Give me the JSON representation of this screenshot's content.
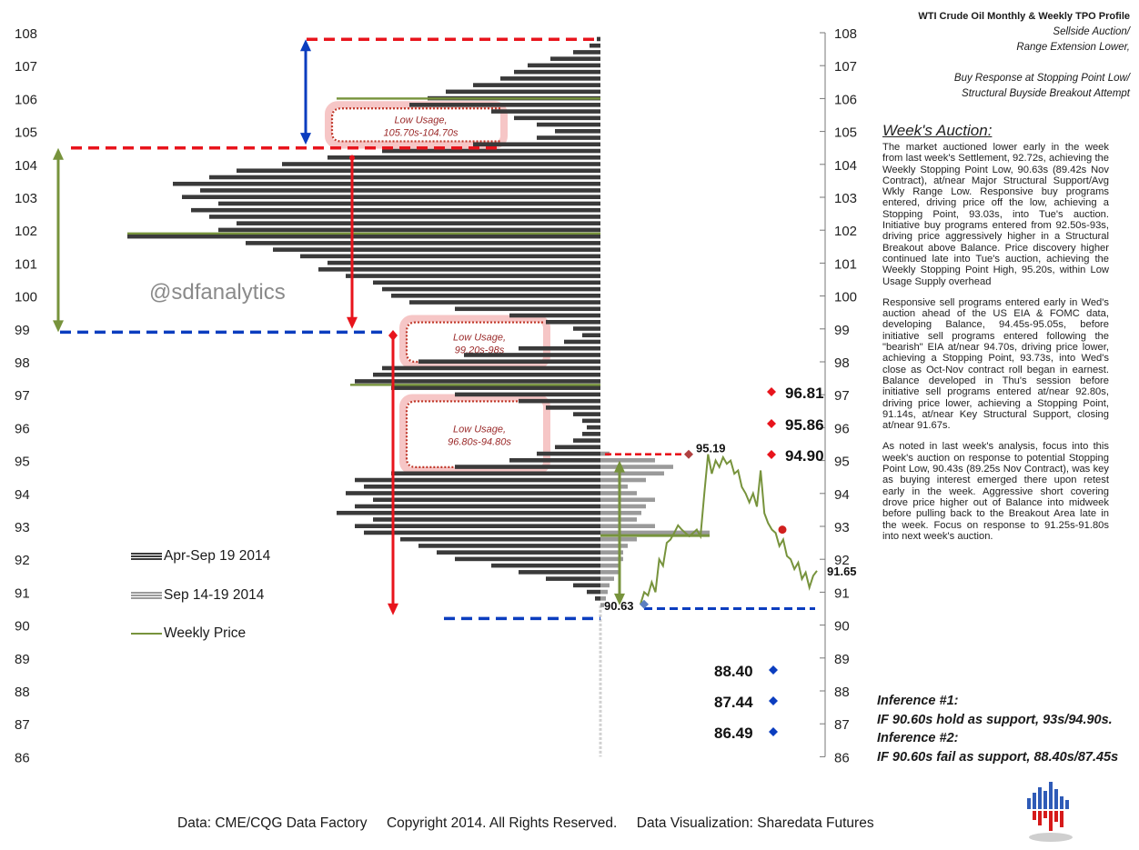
{
  "header": {
    "title": "WTI Crude Oil  Monthly & Weekly TPO Profile",
    "subtitle_lines": [
      "Sellside Auction/",
      "Range Extension Lower,",
      "Buy Response at Stopping Point Low/",
      "Structural  Buyside Breakout  Attempt"
    ]
  },
  "watermark": "@sdfanalytics",
  "analysis": {
    "heading": "Week's Auction:",
    "paragraphs": [
      "The market auctioned lower early in the week from last week's Settlement, 92.72s, achieving the Weekly Stopping Point Low, 90.63s (89.42s Nov Contract), at/near Major Structural Support/Avg Wkly Range Low. Responsive buy programs entered, driving price off the low, achieving a Stopping Point, 93.03s, into Tue's auction. Initiative buy programs entered from 92.50s-93s, driving price aggressively higher in a Structural Breakout above Balance. Price discovery higher continued late into Tue's auction, achieving the Weekly Stopping Point High, 95.20s, within Low Usage Supply overhead",
      "Responsive sell programs entered early in Wed's auction ahead of the US EIA & FOMC data, developing Balance, 94.45s-95.05s, before initiative sell programs entered following the \"bearish\" EIA at/near 94.70s, driving price lower, achieving a Stopping Point, 93.73s, into Wed's close as Oct-Nov contract roll began in earnest. Balance developed in Thu's session before initiative sell programs entered at/near 92.80s, driving price lower, achieving a Stopping Point, 91.14s, at/near Key Structural Support, closing at/near 91.67s.",
      "As noted in last week's analysis, focus into this week's auction on response to potential Stopping Point Low, 90.43s (89.25s Nov Contract), was key as buying interest emerged there upon retest early in the week. Aggressive short covering drove price higher out of Balance into midweek before pulling back to the Breakout Area late in the week. Focus on response to 91.25s-91.80s into next week's auction."
    ]
  },
  "inferences": [
    {
      "label": "Inference #1:",
      "text": "IF 90.60s hold as support, 93s/94.90s."
    },
    {
      "label": "Inference #2:",
      "text": "IF 90.60s fail as support, 88.40s/87.45s"
    }
  ],
  "footer": "Data: CME/CQG Data Factory     Copyright 2014. All Rights Reserved.     Data Visualization: Sharedata Futures",
  "legend": [
    {
      "label": "Apr-Sep 19 2014",
      "color": "#3a3a3a"
    },
    {
      "label": "Sep 14-19 2014",
      "color": "#9a9a9a"
    },
    {
      "label": "Weekly Price",
      "color": "#77933c"
    }
  ],
  "colors": {
    "red": "#e8141c",
    "blue": "#0b3dbf",
    "green": "#77933c",
    "dark_bar": "#3a3a3a",
    "light_bar": "#9a9a9a",
    "zone_text": "#9b2a2a"
  },
  "chart_data": {
    "type": "bar",
    "y_ticks": [
      86,
      87,
      88,
      89,
      90,
      91,
      92,
      93,
      94,
      95,
      96,
      97,
      98,
      99,
      100,
      101,
      102,
      103,
      104,
      105,
      106,
      107,
      108
    ],
    "ylim": [
      86,
      108
    ],
    "annotations": {
      "low_usage_zones": [
        {
          "label": "Low Usage,",
          "range": "105.70s-104.70s",
          "top": 105.7,
          "bottom": 104.7
        },
        {
          "label": "Low Usage,",
          "range": "99.20s-98s",
          "top": 99.2,
          "bottom": 98.0
        },
        {
          "label": "Low Usage,",
          "range": "96.80s-94.80s",
          "top": 96.8,
          "bottom": 94.8
        }
      ],
      "upside_targets": [
        "96.81",
        "95.86",
        "94.90"
      ],
      "downside_targets": [
        "88.40",
        "87.44",
        "86.49"
      ],
      "week_high": "95.19",
      "week_low": "90.63",
      "last_price": "91.65",
      "reference_levels": {
        "top_red": 107.8,
        "red_mid": 104.5,
        "blue_mid": 98.9,
        "blue_low": 90.5
      }
    },
    "series": [
      {
        "name": "Apr-Sep 19 2014",
        "profile": [
          [
            107.8,
            4
          ],
          [
            107.6,
            12
          ],
          [
            107.4,
            30
          ],
          [
            107.2,
            55
          ],
          [
            107.0,
            80
          ],
          [
            106.8,
            95
          ],
          [
            106.6,
            110
          ],
          [
            106.4,
            140
          ],
          [
            106.2,
            170
          ],
          [
            106.0,
            190
          ],
          [
            105.8,
            210
          ],
          [
            105.6,
            120
          ],
          [
            105.4,
            95
          ],
          [
            105.2,
            70
          ],
          [
            105.0,
            50
          ],
          [
            104.8,
            70
          ],
          [
            104.6,
            140
          ],
          [
            104.4,
            240
          ],
          [
            104.2,
            300
          ],
          [
            104.0,
            350
          ],
          [
            103.8,
            400
          ],
          [
            103.6,
            430
          ],
          [
            103.4,
            470
          ],
          [
            103.2,
            440
          ],
          [
            103.0,
            460
          ],
          [
            102.8,
            420
          ],
          [
            102.6,
            450
          ],
          [
            102.4,
            430
          ],
          [
            102.2,
            400
          ],
          [
            102.0,
            420
          ],
          [
            101.8,
            520
          ],
          [
            101.6,
            390
          ],
          [
            101.4,
            360
          ],
          [
            101.2,
            330
          ],
          [
            101.0,
            300
          ],
          [
            100.8,
            310
          ],
          [
            100.6,
            280
          ],
          [
            100.4,
            250
          ],
          [
            100.2,
            240
          ],
          [
            100.0,
            230
          ],
          [
            99.8,
            210
          ],
          [
            99.6,
            160
          ],
          [
            99.4,
            100
          ],
          [
            99.2,
            60
          ],
          [
            99.0,
            30
          ],
          [
            98.8,
            20
          ],
          [
            98.6,
            40
          ],
          [
            98.4,
            90
          ],
          [
            98.2,
            150
          ],
          [
            98.0,
            200
          ],
          [
            97.8,
            240
          ],
          [
            97.6,
            250
          ],
          [
            97.4,
            270
          ],
          [
            97.2,
            230
          ],
          [
            97.0,
            160
          ],
          [
            96.8,
            90
          ],
          [
            96.6,
            60
          ],
          [
            96.4,
            30
          ],
          [
            96.2,
            20
          ],
          [
            96.0,
            15
          ],
          [
            95.8,
            20
          ],
          [
            95.6,
            30
          ],
          [
            95.4,
            50
          ],
          [
            95.2,
            70
          ],
          [
            95.0,
            100
          ],
          [
            94.8,
            160
          ],
          [
            94.6,
            230
          ],
          [
            94.4,
            270
          ],
          [
            94.2,
            260
          ],
          [
            94.0,
            280
          ],
          [
            93.8,
            250
          ],
          [
            93.6,
            270
          ],
          [
            93.4,
            290
          ],
          [
            93.2,
            250
          ],
          [
            93.0,
            270
          ],
          [
            92.8,
            260
          ],
          [
            92.6,
            220
          ],
          [
            92.4,
            200
          ],
          [
            92.2,
            180
          ],
          [
            92.0,
            160
          ],
          [
            91.8,
            120
          ],
          [
            91.6,
            90
          ],
          [
            91.4,
            60
          ],
          [
            91.2,
            30
          ],
          [
            91.0,
            15
          ],
          [
            90.8,
            6
          ]
        ]
      },
      {
        "name": "Sep 14-19 2014",
        "profile": [
          [
            95.2,
            10
          ],
          [
            95.0,
            60
          ],
          [
            94.8,
            80
          ],
          [
            94.6,
            70
          ],
          [
            94.4,
            50
          ],
          [
            94.2,
            30
          ],
          [
            94.0,
            40
          ],
          [
            93.8,
            60
          ],
          [
            93.6,
            50
          ],
          [
            93.4,
            45
          ],
          [
            93.2,
            40
          ],
          [
            93.0,
            60
          ],
          [
            92.8,
            120
          ],
          [
            92.6,
            40
          ],
          [
            92.4,
            30
          ],
          [
            92.2,
            25
          ],
          [
            92.0,
            25
          ],
          [
            91.8,
            20
          ],
          [
            91.6,
            20
          ],
          [
            91.4,
            15
          ],
          [
            91.2,
            10
          ],
          [
            91.0,
            8
          ],
          [
            90.8,
            6
          ],
          [
            90.6,
            4
          ]
        ]
      },
      {
        "name": "Weekly Price",
        "points": [
          [
            0,
            90.63
          ],
          [
            2,
            91.0
          ],
          [
            4,
            90.9
          ],
          [
            6,
            91.3
          ],
          [
            8,
            91.0
          ],
          [
            10,
            92.0
          ],
          [
            12,
            91.8
          ],
          [
            14,
            92.5
          ],
          [
            16,
            92.6
          ],
          [
            18,
            92.8
          ],
          [
            20,
            93.03
          ],
          [
            22,
            92.9
          ],
          [
            24,
            92.8
          ],
          [
            26,
            92.7
          ],
          [
            28,
            92.8
          ],
          [
            30,
            92.9
          ],
          [
            32,
            92.7
          ],
          [
            34,
            94.0
          ],
          [
            36,
            95.19
          ],
          [
            38,
            94.6
          ],
          [
            40,
            95.0
          ],
          [
            42,
            94.8
          ],
          [
            44,
            95.1
          ],
          [
            46,
            94.9
          ],
          [
            48,
            95.0
          ],
          [
            50,
            94.6
          ],
          [
            52,
            94.7
          ],
          [
            54,
            94.2
          ],
          [
            56,
            94.0
          ],
          [
            58,
            93.73
          ],
          [
            60,
            94.0
          ],
          [
            62,
            93.6
          ],
          [
            64,
            94.7
          ],
          [
            66,
            93.4
          ],
          [
            68,
            93.1
          ],
          [
            70,
            92.9
          ],
          [
            72,
            92.8
          ],
          [
            74,
            92.4
          ],
          [
            76,
            92.6
          ],
          [
            78,
            92.1
          ],
          [
            80,
            92.0
          ],
          [
            82,
            91.7
          ],
          [
            84,
            91.9
          ],
          [
            86,
            91.4
          ],
          [
            88,
            91.6
          ],
          [
            90,
            91.14
          ],
          [
            92,
            91.5
          ],
          [
            94,
            91.65
          ]
        ]
      }
    ]
  }
}
